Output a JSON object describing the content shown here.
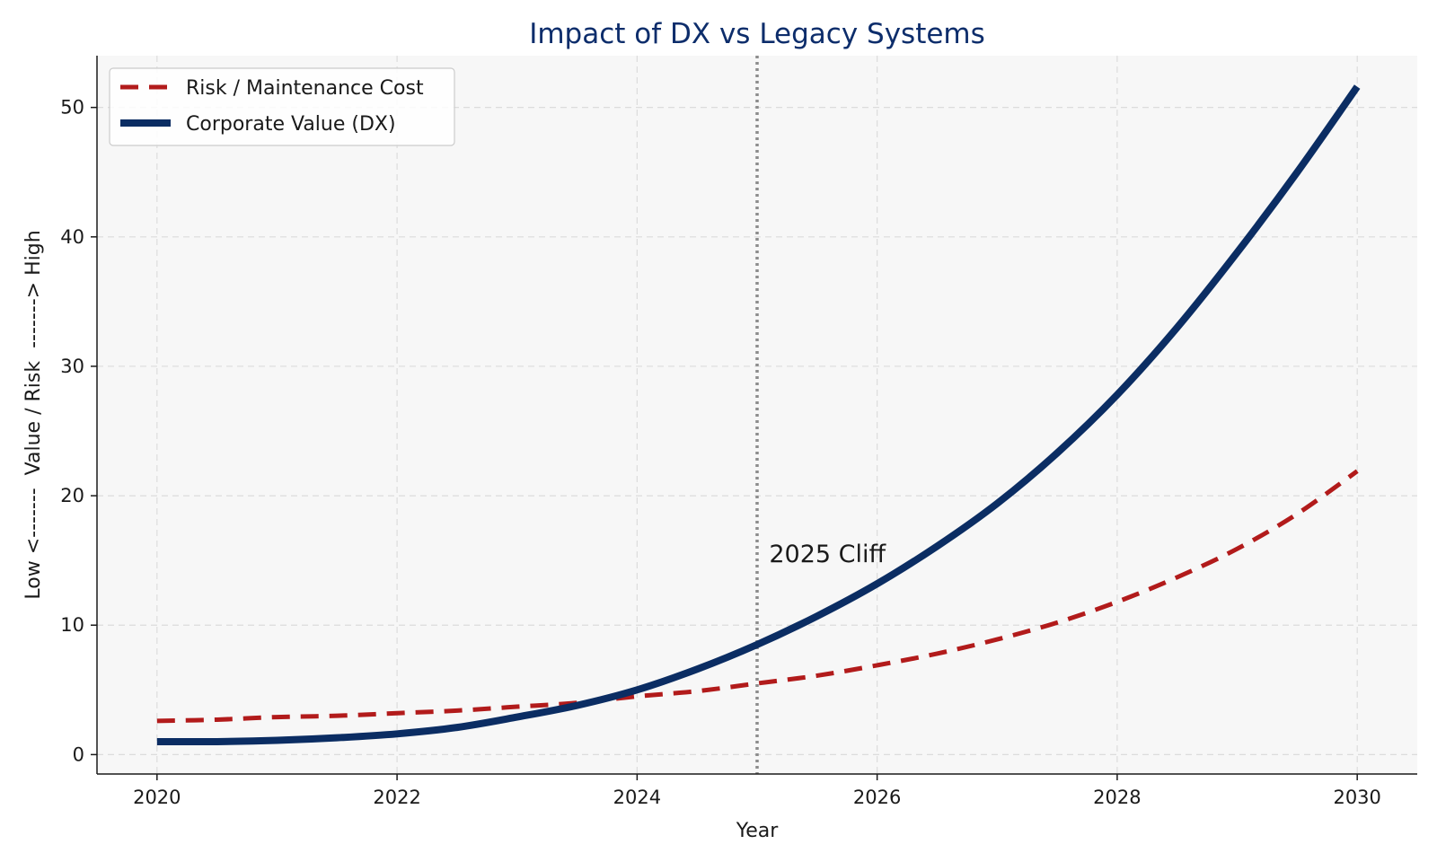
{
  "colors": {
    "title": "#0d2d6b",
    "risk": "#b21b1b",
    "value": "#0b2d63",
    "plot_bg": "#f7f7f7",
    "grid": "#dcdcdc",
    "cliff_line": "#8c8c8c"
  },
  "chart_data": {
    "type": "line",
    "title": "Impact of DX vs Legacy Systems",
    "xlabel": "Year",
    "ylabel": "Low <-------  Value / Risk  -------> High",
    "xlim": [
      2019.5,
      2030.5
    ],
    "ylim": [
      -1.5,
      54
    ],
    "xticks": [
      2020,
      2022,
      2024,
      2026,
      2028,
      2030
    ],
    "yticks": [
      0,
      10,
      20,
      30,
      40,
      50
    ],
    "grid": true,
    "legend_position": "upper-left",
    "series": [
      {
        "name": "Risk / Maintenance Cost",
        "style": "dashed",
        "x": [
          2020,
          2020.5,
          2021,
          2021.5,
          2022,
          2022.5,
          2023,
          2023.5,
          2024,
          2024.5,
          2025,
          2025.5,
          2026,
          2026.5,
          2027,
          2027.5,
          2028,
          2028.5,
          2029,
          2029.5,
          2030
        ],
        "y": [
          2.6,
          2.7,
          2.9,
          3.0,
          3.2,
          3.4,
          3.7,
          4.0,
          4.5,
          4.9,
          5.5,
          6.1,
          6.9,
          7.8,
          8.9,
          10.2,
          11.8,
          13.7,
          15.9,
          18.6,
          21.9
        ]
      },
      {
        "name": "Corporate Value (DX)",
        "style": "solid",
        "x": [
          2020,
          2020.5,
          2021,
          2021.5,
          2022,
          2022.5,
          2023,
          2023.5,
          2024,
          2024.5,
          2025,
          2025.5,
          2026,
          2026.5,
          2027,
          2027.5,
          2028,
          2028.5,
          2029,
          2029.5,
          2030
        ],
        "y": [
          1.0,
          1.0,
          1.1,
          1.3,
          1.6,
          2.1,
          2.9,
          3.8,
          5.0,
          6.6,
          8.5,
          10.7,
          13.2,
          16.1,
          19.4,
          23.3,
          27.8,
          33.0,
          38.8,
          45.0,
          51.6
        ]
      }
    ],
    "annotations": [
      {
        "type": "vline",
        "x": 2025,
        "style": "dotted"
      },
      {
        "type": "text",
        "x": 2025.1,
        "y": 15.5,
        "text": "2025 Cliff"
      }
    ]
  }
}
